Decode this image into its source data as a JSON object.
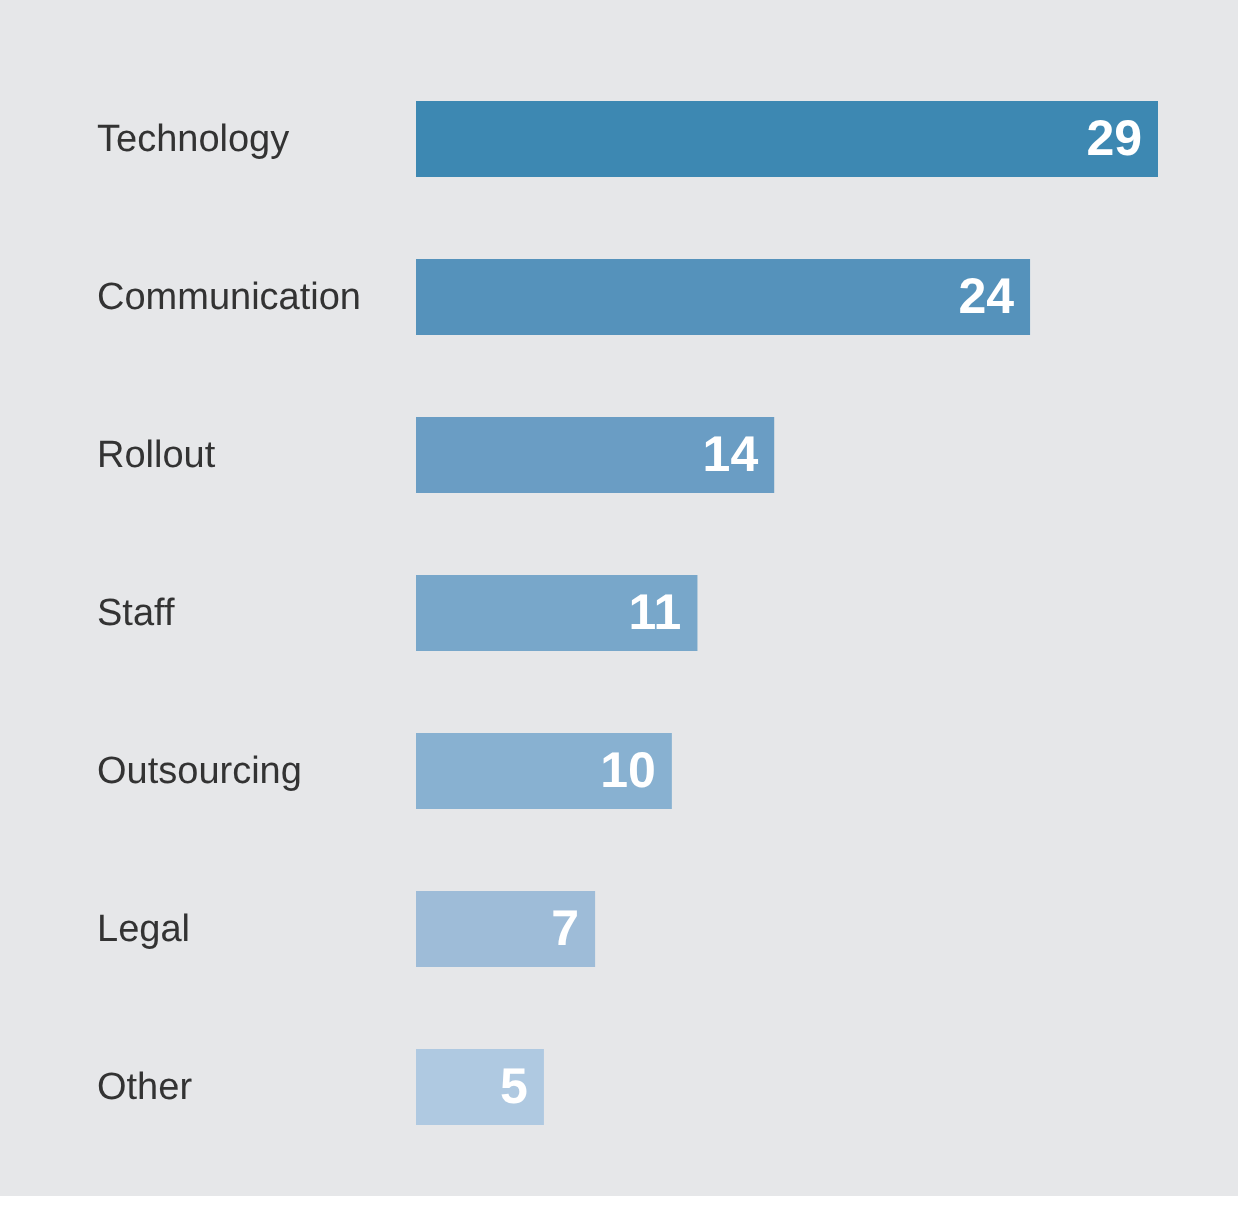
{
  "chart_data": {
    "type": "bar",
    "orientation": "horizontal",
    "data_labels": true,
    "categories": [
      "Technology",
      "Communication",
      "Rollout",
      "Staff",
      "Outsourcing",
      "Legal",
      "Other"
    ],
    "values": [
      29,
      24,
      14,
      11,
      10,
      7,
      5
    ],
    "colors": [
      "#3d88b2",
      "#5592bb",
      "#6a9dc4",
      "#78a7ca",
      "#88b1d1",
      "#9ebcd8",
      "#afc9e1"
    ]
  }
}
